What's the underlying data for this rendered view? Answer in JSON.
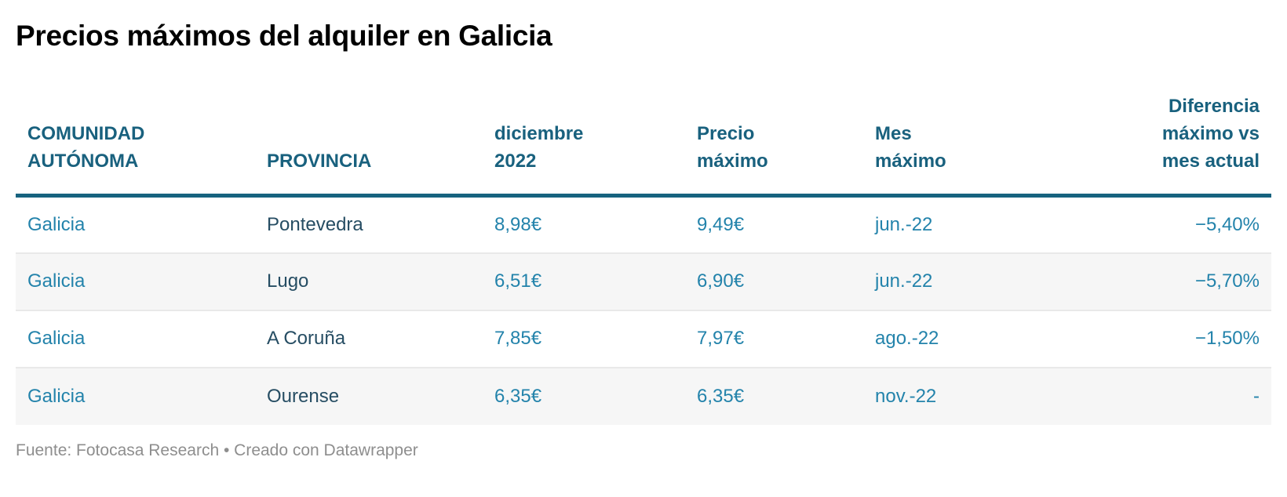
{
  "title": "Precios máximos del alquiler en Galicia",
  "footer": {
    "text": "Fuente: Fotocasa Research • Creado con Datawrapper"
  },
  "colors": {
    "header_text": "#19617E",
    "header_rule": "#17637F",
    "value_text": "#2383AB",
    "province_text": "#264D63",
    "zebra_row": "#F6F6F6",
    "row_divider": "#E9E9E9",
    "footer_text": "#8E8E8E",
    "title_text": "#000000",
    "background": "#FFFFFF"
  },
  "table": {
    "columns": [
      {
        "name": "comunidad-autonoma",
        "label": "COMUNIDAD\nAUTÓNOMA",
        "align": "left"
      },
      {
        "name": "provincia",
        "label": "PROVINCIA",
        "align": "left"
      },
      {
        "name": "diciembre-2022",
        "label": "diciembre\n2022",
        "align": "left"
      },
      {
        "name": "precio-maximo",
        "label": "Precio\nmáximo",
        "align": "left"
      },
      {
        "name": "mes-maximo",
        "label": "Mes\nmáximo",
        "align": "left"
      },
      {
        "name": "diferencia-maximo-vs-mes-actual",
        "label": "Diferencia\nmáximo vs\nmes actual",
        "align": "right"
      }
    ],
    "rows": [
      [
        "Galicia",
        "Pontevedra",
        "8,98€",
        "9,49€",
        "jun.-22",
        "−5,40%"
      ],
      [
        "Galicia",
        "Lugo",
        "6,51€",
        "6,90€",
        "jun.-22",
        "−5,70%"
      ],
      [
        "Galicia",
        "A Coruña",
        "7,85€",
        "7,97€",
        "ago.-22",
        "−1,50%"
      ],
      [
        "Galicia",
        "Ourense",
        "6,35€",
        "6,35€",
        "nov.-22",
        "-"
      ]
    ]
  },
  "chart_data": {
    "type": "table",
    "title": "Precios máximos del alquiler en Galicia",
    "columns": [
      "COMUNIDAD AUTÓNOMA",
      "PROVINCIA",
      "diciembre 2022",
      "Precio máximo",
      "Mes máximo",
      "Diferencia máximo vs mes actual"
    ],
    "rows": [
      [
        "Galicia",
        "Pontevedra",
        "8,98€",
        "9,49€",
        "jun.-22",
        "−5,40%"
      ],
      [
        "Galicia",
        "Lugo",
        "6,51€",
        "6,90€",
        "jun.-22",
        "−5,70%"
      ],
      [
        "Galicia",
        "A Coruña",
        "7,85€",
        "7,97€",
        "ago.-22",
        "−1,50%"
      ],
      [
        "Galicia",
        "Ourense",
        "6,35€",
        "6,35€",
        "nov.-22",
        "-"
      ]
    ],
    "numeric_values": {
      "diciembre_2022_eur": [
        8.98,
        6.51,
        7.85,
        6.35
      ],
      "precio_maximo_eur": [
        9.49,
        6.9,
        7.97,
        6.35
      ],
      "mes_maximo": [
        "2022-06",
        "2022-06",
        "2022-08",
        "2022-11"
      ],
      "diferencia_pct": [
        -5.4,
        -5.7,
        -1.5,
        null
      ]
    },
    "source": "Fuente: Fotocasa Research • Creado con Datawrapper",
    "layout_hints": {
      "zebra_striping": true,
      "header_rule": true,
      "last_column_right_aligned": true
    }
  }
}
